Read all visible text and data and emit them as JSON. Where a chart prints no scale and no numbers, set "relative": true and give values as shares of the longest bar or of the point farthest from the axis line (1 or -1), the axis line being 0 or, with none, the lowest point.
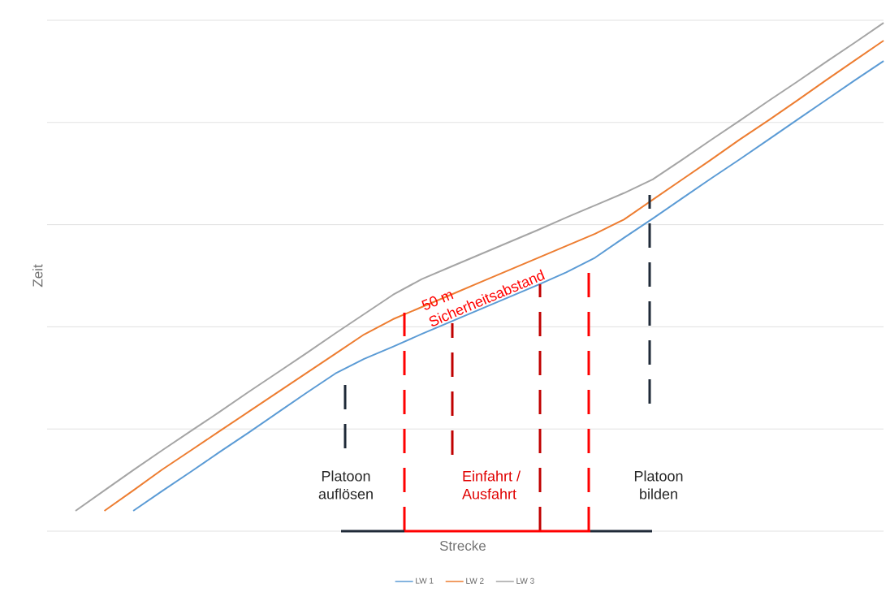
{
  "chart_data": {
    "type": "line",
    "relative": true,
    "xlabel": "Strecke",
    "ylabel": "Zeit",
    "grid": "y",
    "legend": "bottom",
    "categories": [
      null,
      null,
      null,
      null,
      null,
      null,
      null,
      null,
      null,
      null,
      null,
      null,
      null,
      null,
      null,
      null,
      null,
      null,
      null,
      null,
      null,
      null,
      null,
      null,
      null,
      null,
      null,
      null,
      null
    ],
    "series": [
      {
        "name": "LW 1",
        "color": "#5b9bd5",
        "values": [
          null,
          null,
          0.04,
          0.079,
          0.117,
          0.156,
          0.194,
          0.233,
          0.272,
          0.31,
          0.339,
          0.363,
          0.388,
          0.412,
          0.436,
          0.46,
          0.484,
          0.509,
          0.538,
          0.577,
          0.615,
          0.654,
          0.693,
          0.731,
          0.77,
          0.809,
          0.848,
          0.887,
          0.925
        ]
      },
      {
        "name": "LW 2",
        "color": "#ed7d31",
        "values": [
          null,
          0.04,
          0.08,
          0.121,
          0.159,
          0.197,
          0.235,
          0.273,
          0.311,
          0.349,
          0.387,
          0.417,
          0.441,
          0.465,
          0.489,
          0.513,
          0.537,
          0.561,
          0.585,
          0.613,
          0.652,
          0.691,
          0.73,
          0.77,
          0.808,
          0.847,
          0.887,
          0.926,
          0.965
        ]
      },
      {
        "name": "LW 3",
        "color": "#a5a5a5",
        "values": [
          0.04,
          0.08,
          0.12,
          0.159,
          0.197,
          0.235,
          0.274,
          0.312,
          0.35,
          0.389,
          0.427,
          0.465,
          0.496,
          0.52,
          0.544,
          0.568,
          0.592,
          0.617,
          0.641,
          0.665,
          0.692,
          0.73,
          0.769,
          0.807,
          0.846,
          0.884,
          0.923,
          0.961,
          1.0
        ]
      }
    ],
    "annotations": [
      "50 m Sicherheitsabstand",
      "Platoon auflösen",
      "Einfahrt / Ausfahrt",
      "Platoon bilden"
    ]
  }
}
